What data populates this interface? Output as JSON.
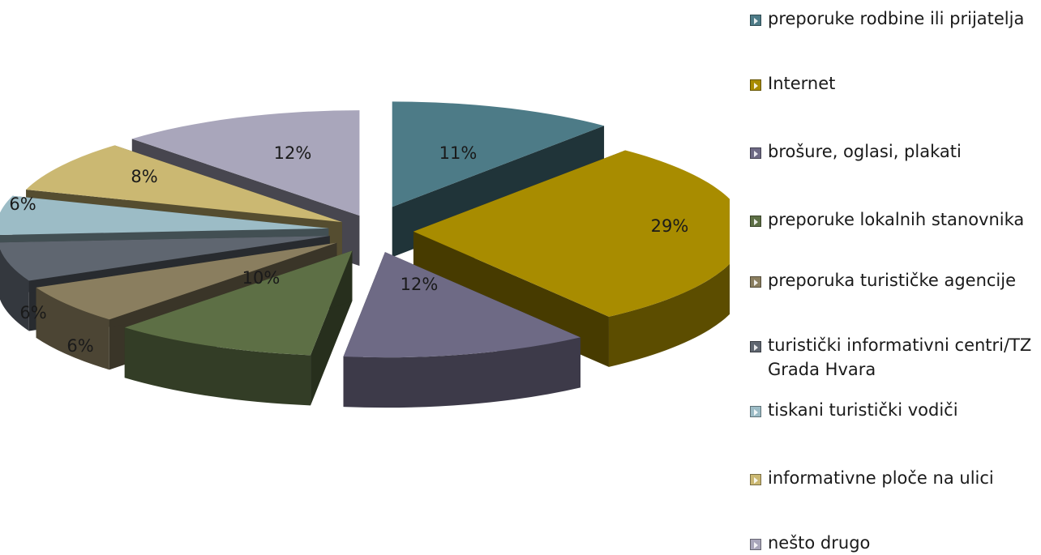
{
  "chart_data": {
    "type": "pie",
    "style": "3d-exploded",
    "legend_position": "right",
    "slices": [
      {
        "label": "preporuke rodbine ili prijatelja",
        "value": 11,
        "value_label": "11%",
        "color": "#4d7b87"
      },
      {
        "label": "Internet",
        "value": 29,
        "value_label": "29%",
        "color": "#a88c00"
      },
      {
        "label": "brošure, oglasi, plakati",
        "value": 12,
        "value_label": "12%",
        "color": "#6e6a85"
      },
      {
        "label": "preporuke lokalnih stanovnika",
        "value": 10,
        "value_label": "10%",
        "color": "#5d6f45"
      },
      {
        "label": "preporuka turističke agencije",
        "value": 6,
        "value_label": "6%",
        "color": "#8a7e5f"
      },
      {
        "label": "turistički informativni centri/TZ Grada Hvara",
        "value": 6,
        "value_label": "6%",
        "color": "#5f6670"
      },
      {
        "label": "tiskani turistički vodiči",
        "value": 6,
        "value_label": "6%",
        "color": "#9cbcc6"
      },
      {
        "label": "informativne ploče na ulici",
        "value": 8,
        "value_label": "8%",
        "color": "#cbb872"
      },
      {
        "label": "nešto drugo",
        "value": 12,
        "value_label": "12%",
        "color": "#a9a6bb"
      }
    ]
  }
}
